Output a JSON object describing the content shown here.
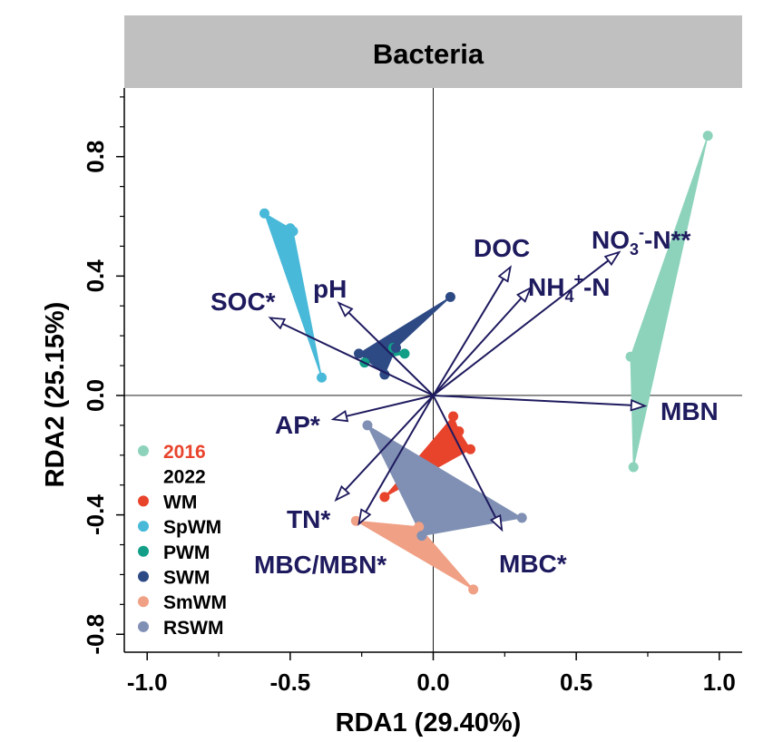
{
  "chart_data": {
    "type": "scatter",
    "title": "Bacteria",
    "xlabel": "RDA1 (29.40%)",
    "ylabel": "RDA2 (25.15%)",
    "xlim": [
      -1.08,
      1.08
    ],
    "ylim": [
      -0.86,
      1.03
    ],
    "x_ticks": [
      -1.0,
      -0.5,
      0.0,
      0.5,
      1.0
    ],
    "x_tick_labels": [
      "-1.0",
      "-0.5",
      "0.0",
      "0.5",
      "1.0"
    ],
    "y_ticks": [
      -0.8,
      -0.4,
      0.0,
      0.4,
      0.8
    ],
    "y_tick_labels": [
      "-0.8",
      "-0.4",
      "0.0",
      "0.4",
      "0.8"
    ],
    "colors": {
      "arrow": "#1e1a5e",
      "title_panel": "#c0c0c0",
      "axis": "#000000"
    },
    "series": [
      {
        "name": "2016",
        "color": "#8dd3bc",
        "points": [
          [
            0.96,
            0.87
          ],
          [
            0.69,
            0.13
          ],
          [
            0.7,
            -0.24
          ]
        ]
      },
      {
        "name": "WM",
        "color": "#e8442c",
        "points": [
          [
            0.07,
            -0.07
          ],
          [
            0.09,
            -0.12
          ],
          [
            0.13,
            -0.18
          ],
          [
            -0.17,
            -0.34
          ]
        ]
      },
      {
        "name": "SpWM",
        "color": "#48b9d9",
        "points": [
          [
            -0.59,
            0.61
          ],
          [
            -0.5,
            0.56
          ],
          [
            -0.49,
            0.55
          ],
          [
            -0.39,
            0.06
          ]
        ]
      },
      {
        "name": "PWM",
        "color": "#129e87",
        "points": [
          [
            -0.14,
            0.16
          ],
          [
            -0.1,
            0.14
          ],
          [
            -0.24,
            0.11
          ]
        ]
      },
      {
        "name": "SWM",
        "color": "#2d4a85",
        "points": [
          [
            0.06,
            0.33
          ],
          [
            -0.26,
            0.14
          ],
          [
            -0.17,
            0.07
          ],
          [
            -0.13,
            0.16
          ]
        ]
      },
      {
        "name": "SmWM",
        "color": "#f0a085",
        "points": [
          [
            -0.27,
            -0.42
          ],
          [
            0.14,
            -0.65
          ],
          [
            -0.05,
            -0.44
          ]
        ]
      },
      {
        "name": "RSWM",
        "color": "#8090b4",
        "points": [
          [
            -0.23,
            -0.1
          ],
          [
            0.31,
            -0.41
          ],
          [
            -0.04,
            -0.47
          ]
        ]
      }
    ],
    "legend": {
      "placement": "bottom-left",
      "entries": [
        {
          "label": "2016",
          "color": "#8dd3bc",
          "text_color": "#e8442c",
          "marker": true
        },
        {
          "label": "2022",
          "color": null,
          "text_color": "#000000",
          "marker": false
        },
        {
          "label": "WM",
          "color": "#e8442c",
          "text_color": "#000000",
          "marker": true
        },
        {
          "label": "SpWM",
          "color": "#48b9d9",
          "text_color": "#000000",
          "marker": true
        },
        {
          "label": "PWM",
          "color": "#129e87",
          "text_color": "#000000",
          "marker": true
        },
        {
          "label": "SWM",
          "color": "#2d4a85",
          "text_color": "#000000",
          "marker": true
        },
        {
          "label": "SmWM",
          "color": "#f0a085",
          "text_color": "#000000",
          "marker": true
        },
        {
          "label": "RSWM",
          "color": "#8090b4",
          "text_color": "#000000",
          "marker": true
        }
      ]
    },
    "arrows": [
      {
        "name": "SOC*",
        "x": -0.57,
        "y": 0.26
      },
      {
        "name": "pH",
        "x": -0.33,
        "y": 0.31
      },
      {
        "name": "DOC",
        "x": 0.27,
        "y": 0.43
      },
      {
        "name": "NH4+-N",
        "x": 0.34,
        "y": 0.36
      },
      {
        "name": "NO3--N**",
        "x": 0.65,
        "y": 0.48
      },
      {
        "name": "MBN",
        "x": 0.74,
        "y": -0.035
      },
      {
        "name": "AP*",
        "x": -0.35,
        "y": -0.08
      },
      {
        "name": "TN*",
        "x": -0.34,
        "y": -0.35
      },
      {
        "name": "MBC/MBN*",
        "x": -0.26,
        "y": -0.43
      },
      {
        "name": "MBC*",
        "x": 0.24,
        "y": -0.45
      }
    ],
    "arrow_labels": [
      {
        "key": "SOC*",
        "text": "SOC*"
      },
      {
        "key": "pH",
        "text": "pH"
      },
      {
        "key": "DOC",
        "text": "DOC"
      },
      {
        "key": "NH4+-N",
        "main": "NH",
        "sub": "4",
        "sup": "+",
        "tail": "-N"
      },
      {
        "key": "NO3--N**",
        "main": "NO",
        "sub": "3",
        "sup": "-",
        "tail": "-N**"
      },
      {
        "key": "MBN",
        "text": "MBN"
      },
      {
        "key": "AP*",
        "text": "AP*"
      },
      {
        "key": "TN*",
        "text": "TN*"
      },
      {
        "key": "MBC/MBN*",
        "text": "MBC/MBN*"
      },
      {
        "key": "MBC*",
        "text": "MBC*"
      }
    ]
  }
}
